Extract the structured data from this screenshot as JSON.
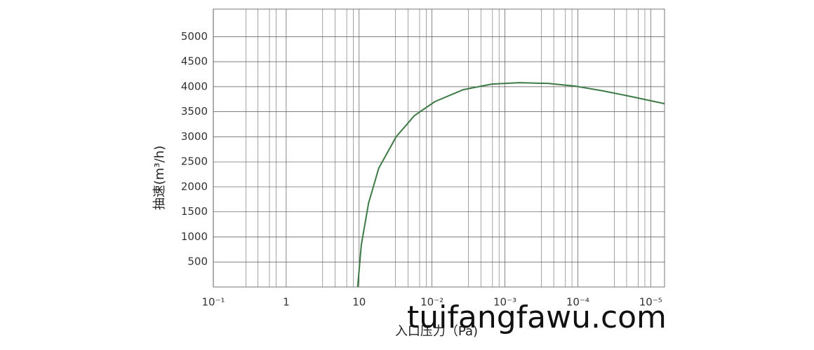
{
  "chart_data": {
    "type": "line",
    "log_scale_x": true,
    "grid": true,
    "x_label": "入口压力（Pa)",
    "y_label": "抽速(m³/h)",
    "watermark": "tuifangfawu.com",
    "xlim": [
      0,
      6.19
    ],
    "ylim": [
      0,
      5550
    ],
    "xticks": [
      {
        "value": 0,
        "label": "10⁻¹"
      },
      {
        "value": 1,
        "label": "1"
      },
      {
        "value": 2,
        "label": "10"
      },
      {
        "value": 3,
        "label": "10⁻²"
      },
      {
        "value": 4,
        "label": "10⁻³"
      },
      {
        "value": 5,
        "label": "10⁻⁴"
      },
      {
        "value": 6,
        "label": "10⁻⁵"
      }
    ],
    "x_minor": [
      0.45,
      0.61,
      0.77,
      0.86,
      1.5,
      1.67,
      1.83,
      1.92,
      2.5,
      2.67,
      2.83,
      2.92,
      3.5,
      3.67,
      3.83,
      3.92,
      4.5,
      4.67,
      4.83,
      4.92,
      5.5,
      5.67,
      5.83,
      5.92
    ],
    "yticks": [
      500,
      1000,
      1500,
      2000,
      2500,
      3000,
      3500,
      4000,
      4500,
      5000
    ],
    "series": [
      {
        "color": "#3d7a45",
        "x": [
          1.98,
          2.03,
          2.13,
          2.27,
          2.51,
          2.76,
          3.04,
          3.43,
          3.82,
          4.2,
          4.59,
          4.97,
          5.36,
          5.74,
          6.19
        ],
        "values": [
          0,
          838,
          1677,
          2375,
          3004,
          3424,
          3703,
          3941,
          4053,
          4080,
          4066,
          4011,
          3913,
          3801,
          3661
        ]
      }
    ]
  }
}
